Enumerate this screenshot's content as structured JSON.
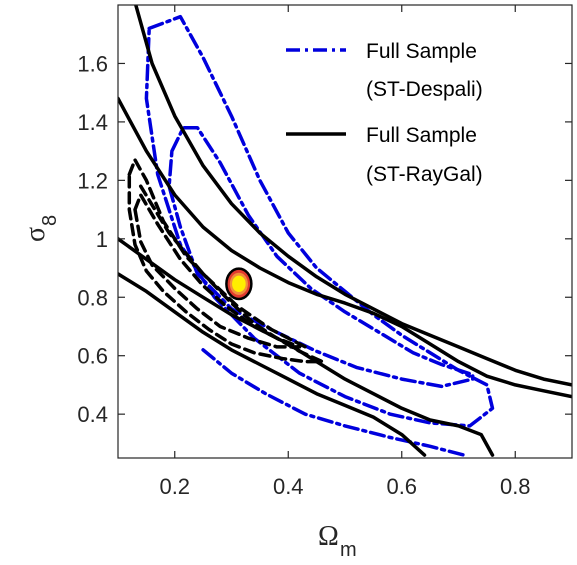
{
  "chart_data": {
    "type": "line",
    "xlabel": "Ω",
    "xlabel_sub": "m",
    "ylabel": "σ",
    "ylabel_sub": "8",
    "xlim": [
      0.1,
      0.9
    ],
    "ylim": [
      0.25,
      1.8
    ],
    "xticks": [
      {
        "value": 0.2,
        "label": "0.2"
      },
      {
        "value": 0.4,
        "label": "0.4"
      },
      {
        "value": 0.6,
        "label": "0.6"
      },
      {
        "value": 0.8,
        "label": "0.8"
      }
    ],
    "yticks": [
      {
        "value": 0.4,
        "label": "0.4"
      },
      {
        "value": 0.6,
        "label": "0.6"
      },
      {
        "value": 0.8,
        "label": "0.8"
      },
      {
        "value": 1.0,
        "label": "1"
      },
      {
        "value": 1.2,
        "label": "1.2"
      },
      {
        "value": 1.4,
        "label": "1.4"
      },
      {
        "value": 1.6,
        "label": "1.6"
      }
    ],
    "grid": false,
    "legend": {
      "placement": "top-right",
      "entries": [
        {
          "line1": "Full Sample",
          "line2": "(ST-Despali)",
          "color": "#0000dd",
          "dash": "dashdot"
        },
        {
          "line1": "Full Sample",
          "line2": "(ST-RayGal)",
          "color": "#000000",
          "dash": "solid"
        }
      ]
    },
    "series": [
      {
        "color": "#0000dd",
        "dash": "dashdot",
        "closed": true,
        "points": [
          [
            0.155,
            1.72
          ],
          [
            0.21,
            1.76
          ],
          [
            0.25,
            1.62
          ],
          [
            0.3,
            1.42
          ],
          [
            0.35,
            1.2
          ],
          [
            0.4,
            1.02
          ],
          [
            0.45,
            0.9
          ],
          [
            0.5,
            0.82
          ],
          [
            0.55,
            0.74
          ],
          [
            0.6,
            0.67
          ],
          [
            0.65,
            0.61
          ],
          [
            0.7,
            0.55
          ],
          [
            0.75,
            0.5
          ],
          [
            0.76,
            0.42
          ],
          [
            0.72,
            0.36
          ],
          [
            0.65,
            0.37
          ],
          [
            0.58,
            0.4
          ],
          [
            0.5,
            0.46
          ],
          [
            0.42,
            0.54
          ],
          [
            0.34,
            0.66
          ],
          [
            0.27,
            0.8
          ],
          [
            0.21,
            0.98
          ],
          [
            0.17,
            1.22
          ],
          [
            0.15,
            1.48
          ]
        ]
      },
      {
        "color": "#0000dd",
        "dash": "dashdot",
        "closed": true,
        "points": [
          [
            0.195,
            1.3
          ],
          [
            0.215,
            1.38
          ],
          [
            0.24,
            1.38
          ],
          [
            0.28,
            1.26
          ],
          [
            0.33,
            1.08
          ],
          [
            0.38,
            0.94
          ],
          [
            0.44,
            0.83
          ],
          [
            0.5,
            0.75
          ],
          [
            0.56,
            0.68
          ],
          [
            0.62,
            0.61
          ],
          [
            0.67,
            0.57
          ],
          [
            0.725,
            0.535
          ],
          [
            0.725,
            0.52
          ],
          [
            0.67,
            0.495
          ],
          [
            0.6,
            0.52
          ],
          [
            0.52,
            0.56
          ],
          [
            0.45,
            0.615
          ],
          [
            0.38,
            0.68
          ],
          [
            0.3,
            0.76
          ],
          [
            0.24,
            0.88
          ],
          [
            0.21,
            1.04
          ],
          [
            0.19,
            1.18
          ]
        ]
      },
      {
        "color": "#0000dd",
        "dash": "dashdot",
        "closed": false,
        "points": [
          [
            0.25,
            0.62
          ],
          [
            0.3,
            0.54
          ],
          [
            0.36,
            0.47
          ],
          [
            0.43,
            0.4
          ],
          [
            0.5,
            0.36
          ],
          [
            0.58,
            0.32
          ],
          [
            0.65,
            0.29
          ],
          [
            0.71,
            0.26
          ]
        ]
      },
      {
        "color": "#000000",
        "dash": "solid",
        "closed": false,
        "points": [
          [
            0.13,
            1.81
          ],
          [
            0.16,
            1.6
          ],
          [
            0.2,
            1.42
          ],
          [
            0.25,
            1.25
          ],
          [
            0.3,
            1.12
          ],
          [
            0.35,
            1.02
          ],
          [
            0.4,
            0.94
          ],
          [
            0.45,
            0.87
          ],
          [
            0.5,
            0.81
          ],
          [
            0.55,
            0.76
          ],
          [
            0.6,
            0.71
          ],
          [
            0.65,
            0.67
          ],
          [
            0.7,
            0.63
          ],
          [
            0.75,
            0.59
          ],
          [
            0.8,
            0.55
          ],
          [
            0.85,
            0.52
          ],
          [
            0.9,
            0.5
          ]
        ]
      },
      {
        "color": "#000000",
        "dash": "solid",
        "closed": false,
        "points": [
          [
            0.1,
            1.48
          ],
          [
            0.15,
            1.3
          ],
          [
            0.2,
            1.15
          ],
          [
            0.25,
            1.04
          ],
          [
            0.3,
            0.96
          ],
          [
            0.35,
            0.9
          ],
          [
            0.4,
            0.85
          ],
          [
            0.45,
            0.81
          ],
          [
            0.5,
            0.78
          ],
          [
            0.55,
            0.745
          ],
          [
            0.6,
            0.7
          ],
          [
            0.65,
            0.64
          ],
          [
            0.7,
            0.58
          ],
          [
            0.75,
            0.53
          ],
          [
            0.8,
            0.5
          ],
          [
            0.85,
            0.48
          ],
          [
            0.9,
            0.46
          ]
        ]
      },
      {
        "color": "#000000",
        "dash": "solid",
        "closed": false,
        "points": [
          [
            0.1,
            1.0
          ],
          [
            0.15,
            0.93
          ],
          [
            0.2,
            0.86
          ],
          [
            0.25,
            0.8
          ],
          [
            0.3,
            0.74
          ],
          [
            0.35,
            0.69
          ],
          [
            0.4,
            0.64
          ],
          [
            0.45,
            0.58
          ],
          [
            0.5,
            0.52
          ],
          [
            0.55,
            0.47
          ],
          [
            0.6,
            0.42
          ],
          [
            0.65,
            0.38
          ],
          [
            0.7,
            0.36
          ],
          [
            0.74,
            0.33
          ],
          [
            0.76,
            0.26
          ]
        ]
      },
      {
        "color": "#000000",
        "dash": "solid",
        "closed": false,
        "points": [
          [
            0.1,
            0.88
          ],
          [
            0.15,
            0.82
          ],
          [
            0.2,
            0.75
          ],
          [
            0.25,
            0.68
          ],
          [
            0.3,
            0.62
          ],
          [
            0.35,
            0.57
          ],
          [
            0.4,
            0.52
          ],
          [
            0.45,
            0.47
          ],
          [
            0.5,
            0.43
          ],
          [
            0.55,
            0.39
          ],
          [
            0.6,
            0.33
          ],
          [
            0.64,
            0.26
          ]
        ]
      },
      {
        "color": "#000000",
        "dash": "dashed",
        "closed": true,
        "points": [
          [
            0.12,
            1.22
          ],
          [
            0.13,
            1.27
          ],
          [
            0.15,
            1.2
          ],
          [
            0.18,
            1.06
          ],
          [
            0.22,
            0.94
          ],
          [
            0.26,
            0.86
          ],
          [
            0.3,
            0.78
          ],
          [
            0.34,
            0.71
          ],
          [
            0.38,
            0.66
          ],
          [
            0.42,
            0.615
          ],
          [
            0.46,
            0.58
          ],
          [
            0.43,
            0.58
          ],
          [
            0.39,
            0.59
          ],
          [
            0.34,
            0.61
          ],
          [
            0.3,
            0.64
          ],
          [
            0.26,
            0.69
          ],
          [
            0.22,
            0.75
          ],
          [
            0.18,
            0.82
          ],
          [
            0.15,
            0.89
          ],
          [
            0.13,
            0.98
          ],
          [
            0.12,
            1.1
          ]
        ]
      },
      {
        "color": "#000000",
        "dash": "dashed",
        "closed": true,
        "points": [
          [
            0.13,
            1.1
          ],
          [
            0.14,
            1.15
          ],
          [
            0.17,
            1.05
          ],
          [
            0.21,
            0.93
          ],
          [
            0.25,
            0.84
          ],
          [
            0.29,
            0.77
          ],
          [
            0.34,
            0.7
          ],
          [
            0.38,
            0.66
          ],
          [
            0.42,
            0.63
          ],
          [
            0.38,
            0.63
          ],
          [
            0.33,
            0.66
          ],
          [
            0.28,
            0.7
          ],
          [
            0.24,
            0.76
          ],
          [
            0.2,
            0.83
          ],
          [
            0.16,
            0.91
          ],
          [
            0.14,
            0.99
          ]
        ]
      },
      {
        "color": "#000000",
        "dash": "dashed",
        "closed": false,
        "points": [
          [
            0.14,
            1.18
          ],
          [
            0.19,
            1.02
          ],
          [
            0.25,
            0.88
          ],
          [
            0.31,
            0.77
          ],
          [
            0.37,
            0.69
          ],
          [
            0.43,
            0.63
          ]
        ]
      }
    ],
    "ellipses": [
      {
        "cx": 0.313,
        "cy": 0.846,
        "rx": 0.022,
        "ry": 0.052,
        "fill": "#e23b2f",
        "stroke": "#000000"
      },
      {
        "cx": 0.313,
        "cy": 0.846,
        "rx": 0.016,
        "ry": 0.038,
        "fill": "#f08f3a",
        "stroke": "none"
      },
      {
        "cx": 0.313,
        "cy": 0.846,
        "rx": 0.012,
        "ry": 0.028,
        "fill": "#ffee00",
        "stroke": "none"
      }
    ]
  }
}
